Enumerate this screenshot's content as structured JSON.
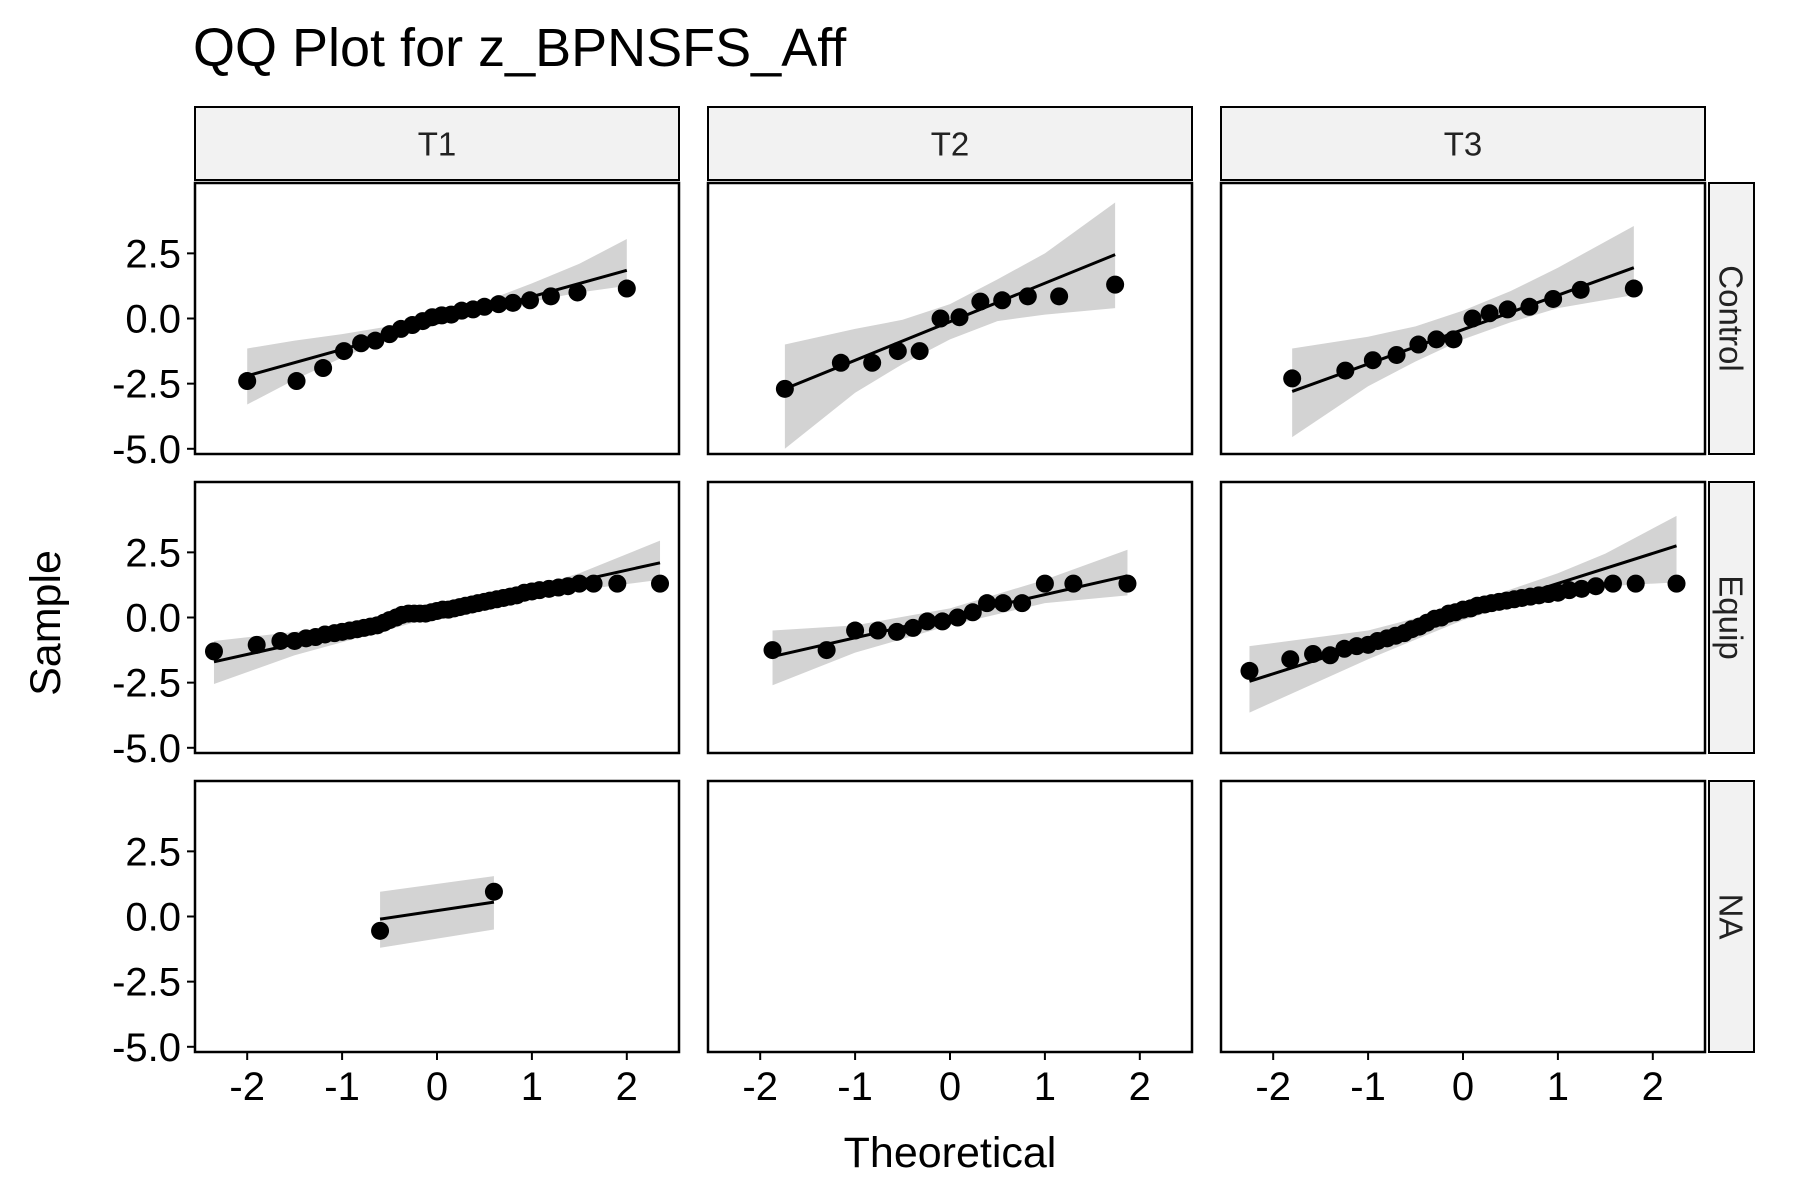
{
  "chart_data": {
    "type": "scatter",
    "title": "QQ Plot for z_BPNSFS_Aff",
    "xlabel": "Theoretical",
    "ylabel": "Sample",
    "xlim": [
      -2.55,
      2.55
    ],
    "ylim": [
      -5.2,
      5.2
    ],
    "xticks": [
      -2,
      -1,
      0,
      1,
      2
    ],
    "xtick_labels": [
      "-2",
      "-1",
      "0",
      "1",
      "2"
    ],
    "yticks": [
      2.5,
      0.0,
      -2.5,
      -5.0
    ],
    "ytick_labels": [
      "2.5",
      "0.0",
      "-2.5",
      "-5.0"
    ],
    "columns": [
      "T1",
      "T2",
      "T3"
    ],
    "rows": [
      "Control",
      "Equip",
      "NA"
    ],
    "point_color": "#000000",
    "line_color": "#000000",
    "band_color": "#d3d3d3",
    "strip_fill": "#f2f2f2",
    "panels": [
      {
        "column": "T1",
        "row": "Control",
        "points": [
          [
            -2.0,
            -2.4
          ],
          [
            -1.48,
            -2.4
          ],
          [
            -1.2,
            -1.9
          ],
          [
            -0.98,
            -1.25
          ],
          [
            -0.8,
            -0.95
          ],
          [
            -0.65,
            -0.85
          ],
          [
            -0.5,
            -0.6
          ],
          [
            -0.38,
            -0.4
          ],
          [
            -0.26,
            -0.25
          ],
          [
            -0.15,
            -0.1
          ],
          [
            -0.05,
            0.05
          ],
          [
            0.05,
            0.12
          ],
          [
            0.15,
            0.15
          ],
          [
            0.26,
            0.3
          ],
          [
            0.38,
            0.35
          ],
          [
            0.5,
            0.45
          ],
          [
            0.65,
            0.55
          ],
          [
            0.8,
            0.6
          ],
          [
            0.98,
            0.7
          ],
          [
            1.2,
            0.85
          ],
          [
            1.48,
            1.0
          ],
          [
            2.0,
            1.15
          ]
        ],
        "line": [
          [
            -2.0,
            -2.2
          ],
          [
            2.0,
            1.85
          ]
        ],
        "band": [
          [
            -2.0,
            -1.15,
            -3.3
          ],
          [
            -1.5,
            -0.85,
            -2.35
          ],
          [
            -1.0,
            -0.6,
            -1.5
          ],
          [
            -0.5,
            -0.3,
            -0.75
          ],
          [
            0.0,
            0.05,
            -0.2
          ],
          [
            0.5,
            0.65,
            0.25
          ],
          [
            1.0,
            1.35,
            0.65
          ],
          [
            1.5,
            2.1,
            1.0
          ],
          [
            2.0,
            3.05,
            1.25
          ]
        ]
      },
      {
        "column": "T2",
        "row": "Control",
        "points": [
          [
            -1.74,
            -2.7
          ],
          [
            -1.15,
            -1.7
          ],
          [
            -0.82,
            -1.7
          ],
          [
            -0.55,
            -1.25
          ],
          [
            -0.32,
            -1.25
          ],
          [
            -0.1,
            0.0
          ],
          [
            0.1,
            0.05
          ],
          [
            0.32,
            0.65
          ],
          [
            0.55,
            0.7
          ],
          [
            0.82,
            0.85
          ],
          [
            1.15,
            0.85
          ],
          [
            1.74,
            1.3
          ]
        ],
        "line": [
          [
            -1.74,
            -2.7
          ],
          [
            1.74,
            2.45
          ]
        ],
        "band": [
          [
            -1.74,
            -1.0,
            -5.0
          ],
          [
            -1.0,
            -0.4,
            -2.85
          ],
          [
            -0.5,
            -0.05,
            -1.75
          ],
          [
            0.0,
            0.55,
            -0.8
          ],
          [
            0.5,
            1.5,
            -0.1
          ],
          [
            1.0,
            2.5,
            0.15
          ],
          [
            1.74,
            4.45,
            0.4
          ]
        ]
      },
      {
        "column": "T3",
        "row": "Control",
        "points": [
          [
            -1.8,
            -2.3
          ],
          [
            -1.24,
            -2.0
          ],
          [
            -0.95,
            -1.6
          ],
          [
            -0.7,
            -1.4
          ],
          [
            -0.47,
            -1.0
          ],
          [
            -0.28,
            -0.8
          ],
          [
            -0.1,
            -0.8
          ],
          [
            0.1,
            0.0
          ],
          [
            0.28,
            0.2
          ],
          [
            0.47,
            0.35
          ],
          [
            0.7,
            0.45
          ],
          [
            0.95,
            0.75
          ],
          [
            1.24,
            1.1
          ],
          [
            1.8,
            1.15
          ]
        ],
        "line": [
          [
            -1.8,
            -2.8
          ],
          [
            1.8,
            1.95
          ]
        ],
        "band": [
          [
            -1.8,
            -1.15,
            -4.55
          ],
          [
            -1.0,
            -0.7,
            -2.6
          ],
          [
            -0.5,
            -0.3,
            -1.65
          ],
          [
            0.0,
            0.3,
            -0.8
          ],
          [
            0.5,
            1.05,
            -0.15
          ],
          [
            1.0,
            1.95,
            0.4
          ],
          [
            1.8,
            3.55,
            0.9
          ]
        ]
      },
      {
        "column": "T1",
        "row": "Equip",
        "points": [
          [
            -2.35,
            -1.3
          ],
          [
            -1.9,
            -1.05
          ],
          [
            -1.65,
            -0.9
          ],
          [
            -1.5,
            -0.9
          ],
          [
            -1.38,
            -0.8
          ],
          [
            -1.28,
            -0.75
          ],
          [
            -1.18,
            -0.65
          ],
          [
            -1.08,
            -0.6
          ],
          [
            -1.0,
            -0.55
          ],
          [
            -0.92,
            -0.5
          ],
          [
            -0.84,
            -0.45
          ],
          [
            -0.77,
            -0.4
          ],
          [
            -0.7,
            -0.35
          ],
          [
            -0.63,
            -0.3
          ],
          [
            -0.56,
            -0.2
          ],
          [
            -0.5,
            -0.1
          ],
          [
            -0.43,
            0.0
          ],
          [
            -0.37,
            0.1
          ],
          [
            -0.3,
            0.15
          ],
          [
            -0.24,
            0.15
          ],
          [
            -0.18,
            0.15
          ],
          [
            -0.12,
            0.15
          ],
          [
            -0.06,
            0.2
          ],
          [
            0.0,
            0.25
          ],
          [
            0.06,
            0.3
          ],
          [
            0.12,
            0.3
          ],
          [
            0.18,
            0.35
          ],
          [
            0.24,
            0.4
          ],
          [
            0.3,
            0.45
          ],
          [
            0.37,
            0.5
          ],
          [
            0.43,
            0.55
          ],
          [
            0.5,
            0.6
          ],
          [
            0.56,
            0.65
          ],
          [
            0.63,
            0.7
          ],
          [
            0.7,
            0.75
          ],
          [
            0.77,
            0.8
          ],
          [
            0.84,
            0.85
          ],
          [
            0.92,
            0.95
          ],
          [
            1.0,
            1.0
          ],
          [
            1.08,
            1.05
          ],
          [
            1.18,
            1.1
          ],
          [
            1.28,
            1.15
          ],
          [
            1.38,
            1.2
          ],
          [
            1.5,
            1.3
          ],
          [
            1.65,
            1.3
          ],
          [
            1.9,
            1.3
          ],
          [
            2.35,
            1.3
          ]
        ],
        "line": [
          [
            -2.35,
            -1.7
          ],
          [
            2.35,
            2.1
          ]
        ],
        "band": [
          [
            -2.35,
            -0.9,
            -2.55
          ],
          [
            -1.5,
            -0.55,
            -1.45
          ],
          [
            -1.0,
            -0.3,
            -0.95
          ],
          [
            0.0,
            0.3,
            0.05
          ],
          [
            1.0,
            1.15,
            0.8
          ],
          [
            1.5,
            1.7,
            1.05
          ],
          [
            2.35,
            2.95,
            1.45
          ]
        ]
      },
      {
        "column": "T2",
        "row": "Equip",
        "points": [
          [
            -1.87,
            -1.25
          ],
          [
            -1.3,
            -1.25
          ],
          [
            -1.0,
            -0.5
          ],
          [
            -0.76,
            -0.5
          ],
          [
            -0.56,
            -0.55
          ],
          [
            -0.39,
            -0.4
          ],
          [
            -0.24,
            -0.15
          ],
          [
            -0.08,
            -0.15
          ],
          [
            0.08,
            0.0
          ],
          [
            0.24,
            0.2
          ],
          [
            0.39,
            0.55
          ],
          [
            0.56,
            0.55
          ],
          [
            0.76,
            0.55
          ],
          [
            1.0,
            1.3
          ],
          [
            1.3,
            1.3
          ],
          [
            1.87,
            1.3
          ]
        ],
        "line": [
          [
            -1.87,
            -1.5
          ],
          [
            1.87,
            1.6
          ]
        ],
        "band": [
          [
            -1.87,
            -0.5,
            -2.6
          ],
          [
            -1.0,
            -0.3,
            -1.35
          ],
          [
            0.0,
            0.35,
            -0.3
          ],
          [
            1.0,
            1.45,
            0.55
          ],
          [
            1.87,
            2.6,
            0.85
          ]
        ]
      },
      {
        "column": "T3",
        "row": "Equip",
        "points": [
          [
            -2.25,
            -2.05
          ],
          [
            -1.82,
            -1.6
          ],
          [
            -1.58,
            -1.4
          ],
          [
            -1.4,
            -1.45
          ],
          [
            -1.25,
            -1.2
          ],
          [
            -1.12,
            -1.1
          ],
          [
            -1.0,
            -1.05
          ],
          [
            -0.9,
            -0.9
          ],
          [
            -0.8,
            -0.8
          ],
          [
            -0.71,
            -0.7
          ],
          [
            -0.62,
            -0.6
          ],
          [
            -0.54,
            -0.45
          ],
          [
            -0.46,
            -0.35
          ],
          [
            -0.38,
            -0.2
          ],
          [
            -0.3,
            -0.05
          ],
          [
            -0.23,
            0.0
          ],
          [
            -0.15,
            0.15
          ],
          [
            -0.08,
            0.2
          ],
          [
            0.0,
            0.3
          ],
          [
            0.08,
            0.35
          ],
          [
            0.15,
            0.45
          ],
          [
            0.23,
            0.5
          ],
          [
            0.3,
            0.55
          ],
          [
            0.38,
            0.6
          ],
          [
            0.46,
            0.65
          ],
          [
            0.54,
            0.7
          ],
          [
            0.62,
            0.75
          ],
          [
            0.71,
            0.8
          ],
          [
            0.8,
            0.85
          ],
          [
            0.9,
            0.9
          ],
          [
            1.0,
            0.95
          ],
          [
            1.12,
            1.05
          ],
          [
            1.25,
            1.1
          ],
          [
            1.4,
            1.2
          ],
          [
            1.58,
            1.3
          ],
          [
            1.82,
            1.3
          ],
          [
            2.25,
            1.3
          ]
        ],
        "line": [
          [
            -2.25,
            -2.45
          ],
          [
            2.25,
            2.75
          ]
        ],
        "band": [
          [
            -2.25,
            -1.1,
            -3.65
          ],
          [
            -1.0,
            -0.5,
            -1.6
          ],
          [
            0.0,
            0.45,
            -0.1
          ],
          [
            1.0,
            1.7,
            1.0
          ],
          [
            1.5,
            2.45,
            1.2
          ],
          [
            2.25,
            3.9,
            1.35
          ]
        ]
      },
      {
        "column": "T1",
        "row": "NA",
        "points": [
          [
            -0.6,
            -0.55
          ],
          [
            0.6,
            0.95
          ]
        ],
        "line": [
          [
            -0.6,
            -0.1
          ],
          [
            0.6,
            0.55
          ]
        ],
        "band": [
          [
            -0.6,
            0.95,
            -1.2
          ],
          [
            0.6,
            1.55,
            -0.5
          ]
        ]
      },
      {
        "column": "T2",
        "row": "NA",
        "points": [],
        "line": [],
        "band": []
      },
      {
        "column": "T3",
        "row": "NA",
        "points": [],
        "line": [],
        "band": []
      }
    ]
  }
}
